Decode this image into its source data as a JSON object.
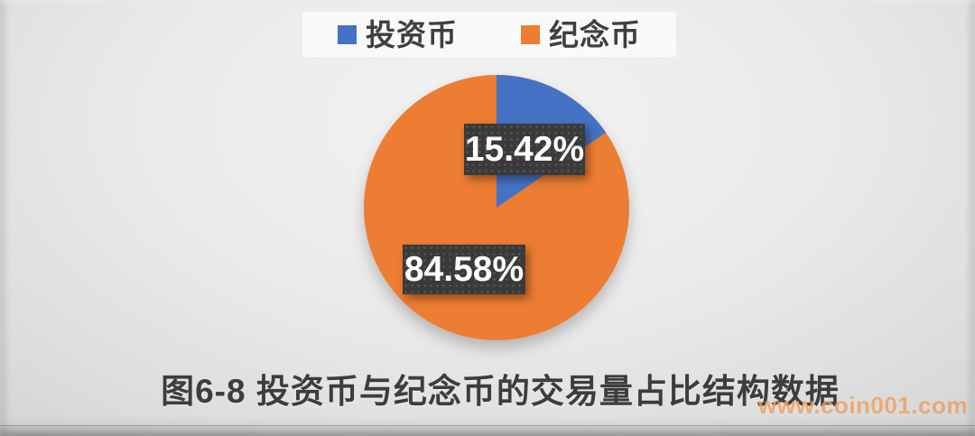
{
  "chart_data": {
    "type": "pie",
    "labels": [
      "投资币",
      "纪念币"
    ],
    "values": [
      15.42,
      84.58
    ],
    "display_labels": [
      "15.42%",
      "84.58%"
    ],
    "colors": [
      "#4472c4",
      "#ed7d31"
    ],
    "start_angle_deg": 0,
    "direction": "clockwise",
    "legend_position": "top",
    "title": "图6-8 投资币与纪念币的交易量占比结构数据"
  },
  "legend": {
    "items": [
      {
        "label": "投资币",
        "color": "#4472c4"
      },
      {
        "label": "纪念币",
        "color": "#ed7d31"
      }
    ]
  },
  "caption": "图6-8 投资币与纪念币的交易量占比结构数据",
  "watermark": {
    "text": "www.coin001.com",
    "color": "#eda15f"
  },
  "label_box_color": "#3a3a3a"
}
